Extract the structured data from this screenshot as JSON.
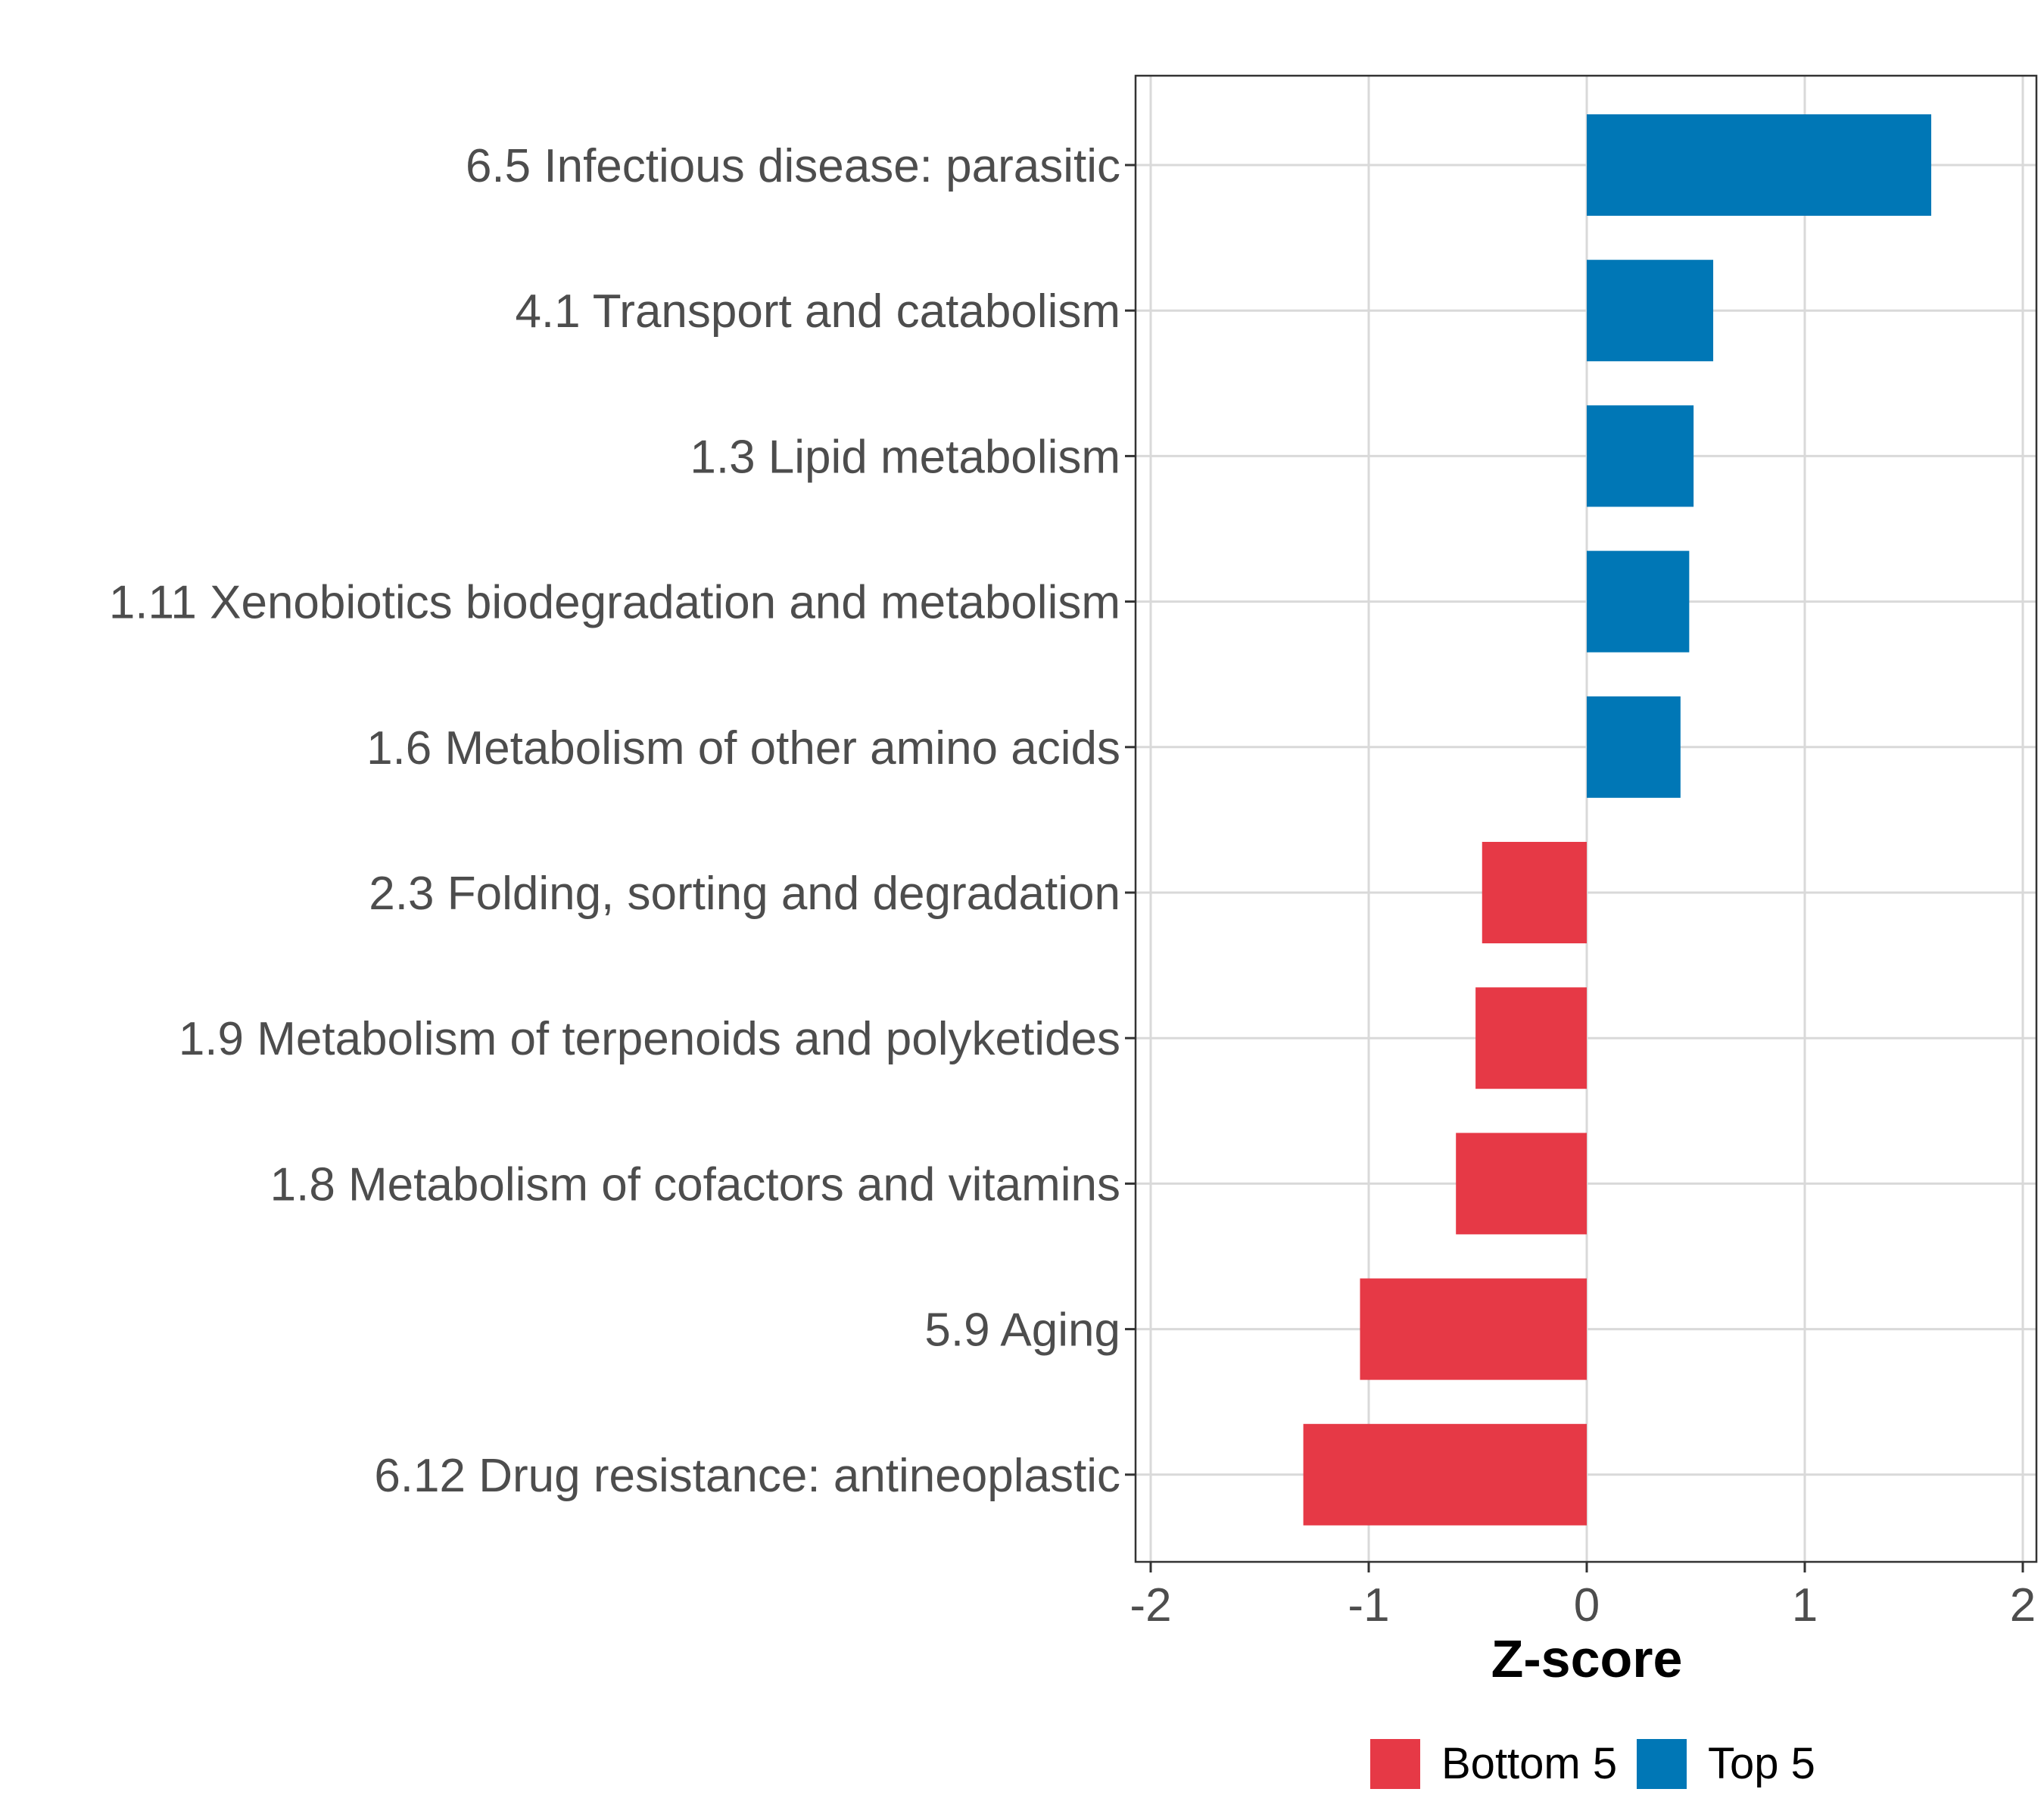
{
  "chart_data": {
    "type": "bar",
    "orientation": "horizontal",
    "title": "",
    "xlabel": "Z-score",
    "ylabel": "",
    "xlim": [
      -2,
      2
    ],
    "xticks": [
      "-2",
      "-1",
      "0",
      "1",
      "2"
    ],
    "grid": true,
    "legend_position": "bottom",
    "categories": [
      "6.5 Infectious disease: parasitic",
      "4.1 Transport and catabolism",
      "1.3 Lipid metabolism",
      "1.11 Xenobiotics biodegradation and metabolism",
      "1.6 Metabolism of other amino acids",
      "2.3 Folding, sorting and degradation",
      "1.9 Metabolism of terpenoids and polyketides",
      "1.8 Metabolism of cofactors and vitamins",
      "5.9 Aging",
      "6.12 Drug resistance: antineoplastic"
    ],
    "values": [
      1.58,
      0.58,
      0.49,
      0.47,
      0.43,
      -0.48,
      -0.51,
      -0.6,
      -1.04,
      -1.3
    ],
    "groups": [
      "Top 5",
      "Top 5",
      "Top 5",
      "Top 5",
      "Top 5",
      "Bottom 5",
      "Bottom 5",
      "Bottom 5",
      "Bottom 5",
      "Bottom 5"
    ],
    "legend": [
      {
        "label": "Bottom 5",
        "color": "#e63946"
      },
      {
        "label": "Top 5",
        "color": "#0077b6"
      }
    ]
  }
}
